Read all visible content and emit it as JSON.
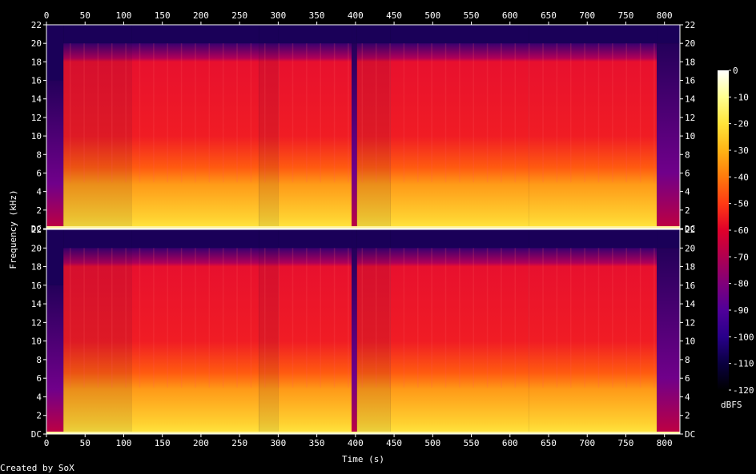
{
  "chart_data": {
    "type": "heatmap",
    "title": "",
    "xlabel": "Time (s)",
    "ylabel": "Frequency (kHz)",
    "xlim": [
      0,
      820
    ],
    "ylim": [
      0,
      22
    ],
    "x_ticks": [
      "0",
      "50",
      "100",
      "150",
      "200",
      "250",
      "300",
      "350",
      "400",
      "450",
      "500",
      "550",
      "600",
      "650",
      "700",
      "750",
      "800"
    ],
    "x_tick_values": [
      0,
      50,
      100,
      150,
      200,
      250,
      300,
      350,
      400,
      450,
      500,
      550,
      600,
      650,
      700,
      750,
      800
    ],
    "y_ticks": [
      "DC",
      "2",
      "4",
      "6",
      "8",
      "10",
      "12",
      "14",
      "16",
      "18",
      "20",
      "22"
    ],
    "y_tick_values": [
      0,
      2,
      4,
      6,
      8,
      10,
      12,
      14,
      16,
      18,
      20,
      22
    ],
    "channels": 2,
    "colorbar": {
      "label": "dBFS",
      "ticks": [
        "0",
        "-10",
        "-20",
        "-30",
        "-40",
        "-50",
        "-60",
        "-70",
        "-80",
        "-90",
        "-100",
        "-110",
        "-120"
      ],
      "tick_values": [
        0,
        -10,
        -20,
        -30,
        -40,
        -50,
        -60,
        -70,
        -80,
        -90,
        -100,
        -110,
        -120
      ],
      "colors": [
        "#ffffff",
        "#ffff90",
        "#ffe43a",
        "#ffb415",
        "#ff7a0c",
        "#ff3a14",
        "#e0002a",
        "#b00050",
        "#80007a",
        "#50009a",
        "#28008a",
        "#0a0040",
        "#000000"
      ]
    },
    "segments": [
      {
        "t": [
          0,
          22
        ],
        "level_db": -85,
        "band_khz": 16
      },
      {
        "t": [
          22,
          110
        ],
        "level_db": -55,
        "band_khz": 20
      },
      {
        "t": [
          110,
          275
        ],
        "level_db": -52,
        "band_khz": 20
      },
      {
        "t": [
          275,
          300
        ],
        "level_db": -62,
        "band_khz": 20
      },
      {
        "t": [
          300,
          395
        ],
        "level_db": -52,
        "band_khz": 20
      },
      {
        "t": [
          395,
          402
        ],
        "level_db": -85,
        "band_khz": 20
      },
      {
        "t": [
          402,
          445
        ],
        "level_db": -55,
        "band_khz": 20
      },
      {
        "t": [
          445,
          625
        ],
        "level_db": -52,
        "band_khz": 20
      },
      {
        "t": [
          625,
          790
        ],
        "level_db": -52,
        "band_khz": 20
      },
      {
        "t": [
          790,
          820
        ],
        "level_db": -85,
        "band_khz": 20
      }
    ]
  },
  "footer": {
    "credit": "Created by SoX"
  }
}
